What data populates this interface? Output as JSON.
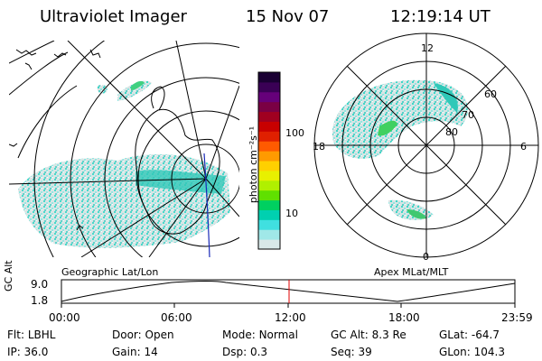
{
  "header": {
    "instrument": "Ultraviolet Imager",
    "date": "15 Nov 07",
    "time": "12:19:14 UT"
  },
  "geo_panel": {
    "label": "Geographic Lat/Lon"
  },
  "apex_panel": {
    "label": "Apex MLat/MLT",
    "mlt_labels": [
      "12",
      "18",
      "6",
      "0"
    ],
    "lat_labels": [
      "60",
      "70",
      "80"
    ]
  },
  "colorbar": {
    "unit": "photon cm⁻²s⁻¹",
    "ticks": [
      "100",
      "10"
    ],
    "colors": [
      "#1a0033",
      "#3a0055",
      "#66007a",
      "#7a0044",
      "#a00020",
      "#c80000",
      "#e02000",
      "#ff5a00",
      "#ff9a00",
      "#ffd000",
      "#e8f000",
      "#b0f000",
      "#60e000",
      "#00d060",
      "#00d0b0",
      "#40e0e0",
      "#a0e8e8",
      "#d8e8e8"
    ]
  },
  "altitude_plot": {
    "ylabel": "GC Alt",
    "yticks": [
      "9.0",
      "1.8"
    ],
    "xticks": [
      "00:00",
      "06:00",
      "12:00",
      "18:00",
      "23:59"
    ],
    "current_time_color": "#e00000"
  },
  "status": {
    "row1": [
      {
        "label": "Flt:",
        "value": "LBHL"
      },
      {
        "label": "Door:",
        "value": "Open"
      },
      {
        "label": "Mode:",
        "value": "Normal"
      },
      {
        "label": "GC Alt:",
        "value": "8.3 Re"
      },
      {
        "label": "GLat:",
        "value": "-64.7"
      }
    ],
    "row2": [
      {
        "label": "IP:",
        "value": "36.0"
      },
      {
        "label": "Gain:",
        "value": "14"
      },
      {
        "label": "Dsp:",
        "value": "0.3"
      },
      {
        "label": "Seq:",
        "value": "39"
      },
      {
        "label": "GLon:",
        "value": "104.3"
      }
    ]
  }
}
